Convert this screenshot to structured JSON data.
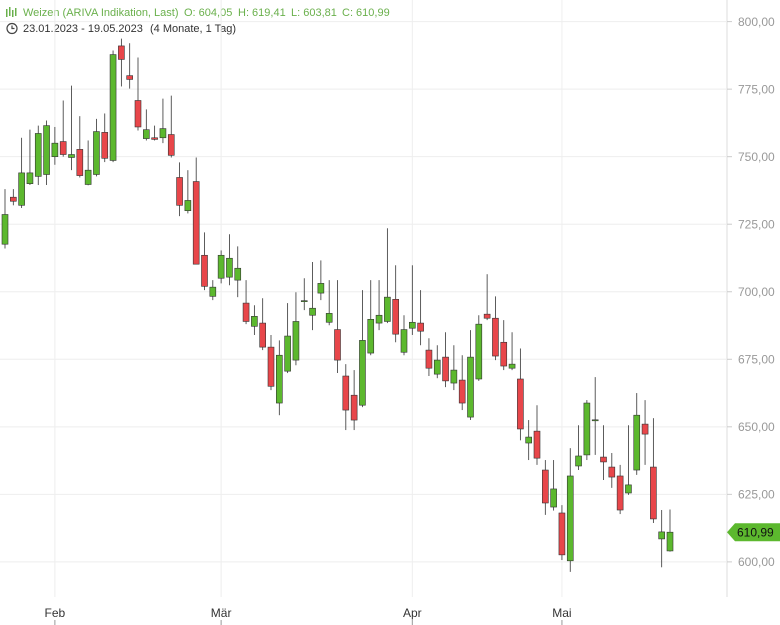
{
  "chart_data": {
    "type": "candlestick",
    "title": "Weizen (ARIVA Indikation, Last)",
    "ohlc_labels": [
      "O: 604,05",
      "H: 619,41",
      "L: 603,81",
      "C: 610,99"
    ],
    "date_range": "23.01.2023 - 19.05.2023",
    "period": "(4 Monate, 1 Tag)",
    "last_label": "610,99",
    "categories": [
      null,
      null,
      null,
      null,
      null,
      null,
      "Feb",
      null,
      null,
      null,
      null,
      null,
      null,
      null,
      null,
      null,
      null,
      null,
      null,
      null,
      null,
      null,
      null,
      null,
      null,
      null,
      "Mär",
      null,
      null,
      null,
      null,
      null,
      null,
      null,
      null,
      null,
      null,
      null,
      null,
      null,
      null,
      null,
      null,
      null,
      null,
      null,
      null,
      null,
      null,
      "Apr",
      null,
      null,
      null,
      null,
      null,
      null,
      null,
      null,
      null,
      null,
      null,
      null,
      null,
      null,
      null,
      null,
      null,
      "Mai",
      null,
      null,
      null,
      null,
      null,
      null,
      null,
      null,
      null,
      null,
      null,
      null,
      null
    ],
    "open": [
      717.6,
      735,
      732,
      740,
      742.7,
      743.4,
      750,
      755.6,
      749.7,
      752.7,
      739.7,
      743.4,
      759,
      748.6,
      791,
      780,
      770.8,
      756.7,
      757,
      757,
      758.2,
      742.3,
      730,
      740.8,
      713.5,
      698.3,
      705,
      705.4,
      704.3,
      695.8,
      687.2,
      688.4,
      679.5,
      658.8,
      670.6,
      674.7,
      696.5,
      691.3,
      699.5,
      688.7,
      686,
      668.8,
      661.7,
      658,
      677.3,
      688.4,
      689,
      697.2,
      677.6,
      686.5,
      688.4,
      678.4,
      669.5,
      675.8,
      666.2,
      667.3,
      653.6,
      667.7,
      691.7,
      690.2,
      681.3,
      671.7,
      667.7,
      644,
      648.4,
      634,
      620.3,
      618.1,
      600.4,
      635.5,
      639.6,
      652.3,
      638.8,
      635.1,
      631.8,
      625.5,
      634,
      651,
      635.1,
      608.5,
      604.05
    ],
    "high": [
      738,
      738,
      757,
      760,
      761.5,
      763.4,
      761,
      770.8,
      776.3,
      765,
      756,
      764,
      766,
      789.3,
      793.7,
      792,
      786.7,
      767.5,
      761.5,
      771.5,
      772.6,
      747.9,
      745,
      749.7,
      722,
      704.3,
      715.3,
      721.3,
      716.8,
      704.3,
      695,
      697.6,
      684,
      682,
      695.8,
      699.8,
      705,
      711,
      711.6,
      704.3,
      704.3,
      673.2,
      671,
      700.6,
      704.3,
      704.3,
      723.5,
      709.8,
      691.3,
      709.8,
      700.6,
      682.8,
      680.2,
      685,
      680.2,
      676.5,
      685.8,
      691.3,
      706.5,
      698.3,
      689.5,
      685,
      679,
      652.5,
      658,
      637.7,
      637.7,
      621,
      642.1,
      650.6,
      659.9,
      668.4,
      650.6,
      640.3,
      635.9,
      650.6,
      662.5,
      659.9,
      653.2,
      619.2,
      619.41
    ],
    "low": [
      716,
      732,
      731,
      739.5,
      739.5,
      739.5,
      747,
      750,
      745,
      742.3,
      739.4,
      742.7,
      748,
      748,
      776,
      775.2,
      759.7,
      756,
      756,
      755,
      749.7,
      728,
      729,
      710.2,
      700.6,
      696.9,
      703.1,
      702.4,
      698,
      688,
      684,
      678.4,
      663.6,
      654.3,
      669.9,
      672.8,
      693.2,
      685.8,
      696.9,
      687.6,
      669.9,
      648.8,
      648.8,
      657.3,
      676.5,
      685.8,
      688.4,
      681.3,
      676.5,
      684,
      680.2,
      668.8,
      668,
      664.7,
      663.6,
      656.2,
      652.5,
      667,
      689.5,
      674.7,
      671,
      671,
      645,
      637.7,
      635.9,
      617.4,
      619,
      600.7,
      596.3,
      634,
      637.7,
      639.6,
      630.3,
      627.4,
      617.7,
      624.8,
      632.2,
      635.9,
      614.4,
      598,
      603.81
    ],
    "close": [
      728.6,
      733.5,
      744,
      744,
      758.6,
      761.5,
      755,
      750.8,
      750.8,
      743,
      745,
      759.3,
      749.4,
      787.8,
      786,
      778.6,
      761,
      760,
      756.4,
      760.4,
      750.5,
      732,
      733.8,
      710.2,
      702,
      701.7,
      713.5,
      712.4,
      708.7,
      689,
      690.9,
      679.5,
      665,
      676.5,
      683.6,
      689,
      696.7,
      693.9,
      703.1,
      692,
      674.7,
      656.2,
      652.5,
      682,
      689.8,
      691.3,
      698,
      684.3,
      686,
      688.7,
      685.4,
      671.7,
      674.7,
      667,
      671,
      658.8,
      675.8,
      688,
      690.2,
      676.2,
      672.5,
      673.2,
      649.2,
      646.2,
      638.4,
      621.8,
      627,
      602.6,
      631.8,
      639.2,
      658.8,
      652.6,
      637,
      631.4,
      619.2,
      628.5,
      654.3,
      647.3,
      615.9,
      611.1,
      610.99
    ],
    "up_color": "#5cb82e",
    "down_color": "#e8464a",
    "title_color": "#6ab04c",
    "ylim": [
      587,
      808
    ],
    "yticks": [
      {
        "value": 600,
        "label": "600,00"
      },
      {
        "value": 625,
        "label": "625,00"
      },
      {
        "value": 650,
        "label": "650,00"
      },
      {
        "value": 675,
        "label": "675,00"
      },
      {
        "value": 700,
        "label": "700,00"
      },
      {
        "value": 725,
        "label": "725,00"
      },
      {
        "value": 750,
        "label": "750,00"
      },
      {
        "value": 775,
        "label": "775,00"
      },
      {
        "value": 800,
        "label": "800,00"
      }
    ],
    "grid": true
  }
}
